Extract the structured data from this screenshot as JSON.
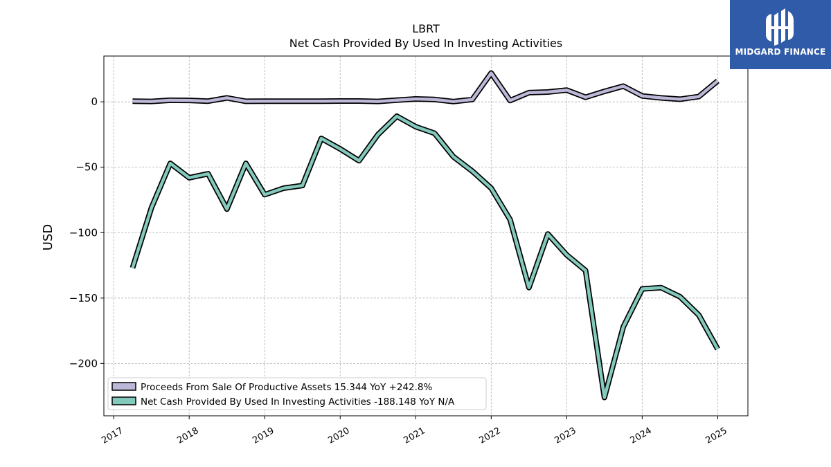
{
  "chart_data": {
    "type": "line",
    "title": "LBRT",
    "subtitle": "Net Cash Provided By Used In Investing Activities",
    "ylabel": "USD",
    "xlabel": "",
    "xlim": [
      2016.87,
      2025.4
    ],
    "ylim": [
      -240,
      35
    ],
    "yticks": [
      0,
      -50,
      -100,
      -150,
      -200
    ],
    "ytick_labels": [
      "0",
      "−50",
      "−100",
      "−150",
      "−200"
    ],
    "xticks": [
      2017,
      2018,
      2019,
      2020,
      2021,
      2022,
      2023,
      2024,
      2025
    ],
    "xtick_labels": [
      "2017",
      "2018",
      "2019",
      "2020",
      "2021",
      "2022",
      "2023",
      "2024",
      "2025"
    ],
    "grid": true,
    "legend_position": "lower-left",
    "series": [
      {
        "name": "Proceeds From Sale Of Productive Assets",
        "legend_label": "Proceeds From Sale Of Productive Assets  15.344 YoY +242.8%",
        "color": "#bcb9d8",
        "x": [
          2017.25,
          2017.5,
          2017.75,
          2018.0,
          2018.25,
          2018.5,
          2018.75,
          2019.0,
          2019.25,
          2019.5,
          2019.75,
          2020.0,
          2020.25,
          2020.5,
          2020.75,
          2021.0,
          2021.25,
          2021.5,
          2021.75,
          2022.0,
          2022.25,
          2022.5,
          2022.75,
          2023.0,
          2023.25,
          2023.5,
          2023.75,
          2024.0,
          2024.25,
          2024.5,
          2024.75,
          2025.0
        ],
        "y": [
          0.5,
          0.3,
          1.2,
          1.1,
          0.5,
          3.0,
          0.4,
          0.5,
          0.5,
          0.5,
          0.5,
          0.6,
          0.6,
          0.3,
          1.3,
          2.2,
          1.8,
          0.2,
          1.8,
          22.0,
          1.0,
          7.0,
          7.5,
          9.0,
          3.5,
          8.0,
          12.0,
          4.5,
          3.0,
          2.0,
          4.0,
          16.0
        ]
      },
      {
        "name": "Net Cash Provided By Used In Investing Activities",
        "legend_label": "Net Cash Provided By Used In Investing Activities  -188.148 YoY N/A",
        "color": "#83c9bc",
        "x": [
          2017.25,
          2017.5,
          2017.75,
          2018.0,
          2018.25,
          2018.5,
          2018.75,
          2019.0,
          2019.25,
          2019.5,
          2019.75,
          2020.0,
          2020.25,
          2020.5,
          2020.75,
          2021.0,
          2021.25,
          2021.5,
          2021.75,
          2022.0,
          2022.25,
          2022.5,
          2022.75,
          2023.0,
          2023.25,
          2023.5,
          2023.75,
          2024.0,
          2024.25,
          2024.5,
          2024.75,
          2025.0
        ],
        "y": [
          -127,
          -81,
          -47,
          -58,
          -55,
          -82,
          -47,
          -71,
          -66,
          -64,
          -28,
          -36,
          -45,
          -25,
          -11,
          -19,
          -24,
          -42,
          -53,
          -66,
          -90,
          -142,
          -101,
          -117,
          -129,
          -226,
          -172,
          -143,
          -142,
          -149,
          -163,
          -189
        ]
      }
    ]
  },
  "logo": {
    "text": "MIDGARD FINANCE",
    "background": "#2f5ba8"
  }
}
